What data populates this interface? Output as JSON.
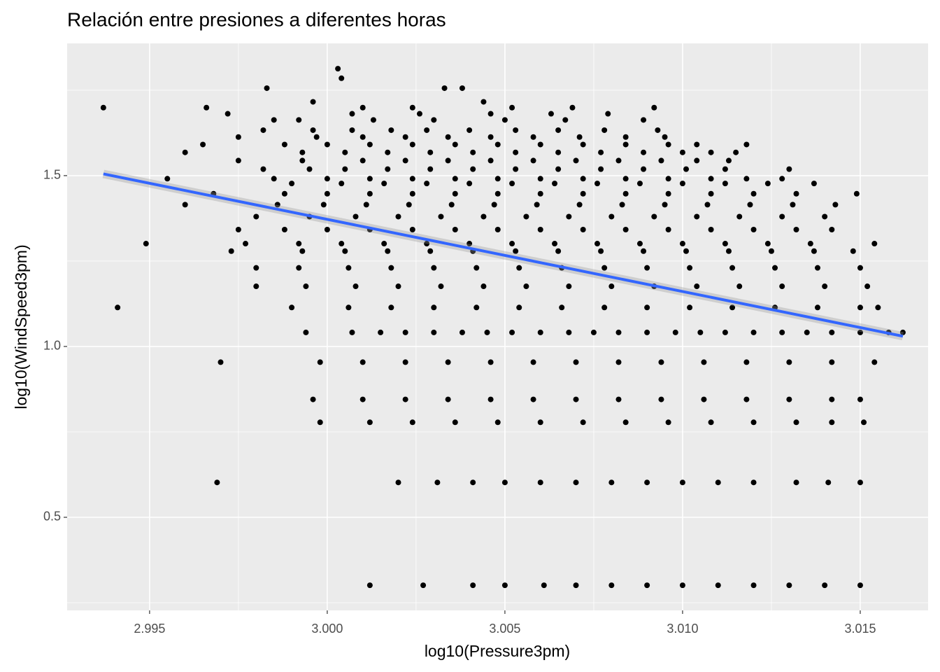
{
  "chart_data": {
    "type": "scatter",
    "title": "Relación entre presiones a diferentes horas",
    "x_label": "log10(Pressure3pm)",
    "y_label": "log10(WindSpeed3pm)",
    "xlim": [
      2.99268,
      3.01691
    ],
    "ylim": [
      0.2275,
      1.887
    ],
    "xticks": [
      2.995,
      {
        "value": 3,
        "label": "3.000"
      },
      3.005,
      {
        "value": 3.01,
        "label": "3.010"
      },
      3.015
    ],
    "yticks": [
      0.5,
      {
        "value": 1,
        "label": "1.0"
      },
      1.5
    ],
    "grid": true,
    "fit": {
      "color": "#3366ff",
      "x": [
        2.9937,
        3.0162
      ],
      "values": [
        1.505,
        1.03
      ]
    },
    "series": [
      {
        "color": "#000000",
        "x": [
          3.0003
        ],
        "values": [
          1.813
        ]
      },
      {
        "color": "#000000",
        "x": [
          3.0004
        ],
        "values": [
          1.785
        ]
      },
      {
        "color": "#000000",
        "x": [
          2.9983,
          3.0033,
          3.0038
        ],
        "values": [
          1.756,
          1.756,
          1.756
        ]
      },
      {
        "color": "#000000",
        "x": [
          2.9996,
          3.0044
        ],
        "values": [
          1.716,
          1.716
        ]
      },
      {
        "color": "#000000",
        "x": [
          2.9937,
          2.9966,
          3.001,
          3.0024,
          3.0052,
          3.0069,
          3.0092
        ],
        "values": [
          1.699,
          1.699,
          1.699,
          1.699,
          1.699,
          1.699,
          1.699
        ]
      },
      {
        "color": "#000000",
        "x": [
          2.9972,
          3.0007,
          3.0026,
          3.0046,
          3.0063,
          3.0079
        ],
        "values": [
          1.681,
          1.681,
          1.681,
          1.681,
          1.681,
          1.681
        ]
      },
      {
        "color": "#000000",
        "x": [
          2.9985,
          2.9992,
          3.0013,
          3.003,
          3.005,
          3.0067,
          3.0089
        ],
        "values": [
          1.663,
          1.663,
          1.663,
          1.663,
          1.663,
          1.663,
          1.663
        ]
      },
      {
        "color": "#000000",
        "x": [
          2.9982,
          2.9996,
          3.0007,
          3.0018,
          3.0028,
          3.004,
          3.0053,
          3.0065,
          3.0078,
          3.0093
        ],
        "values": [
          1.633,
          1.633,
          1.633,
          1.633,
          1.633,
          1.633,
          1.633,
          1.633,
          1.633,
          1.633
        ]
      },
      {
        "color": "#000000",
        "x": [
          2.9975,
          2.9997,
          3.001,
          3.0022,
          3.0034,
          3.0046,
          3.0058,
          3.0071,
          3.0084,
          3.0095
        ],
        "values": [
          1.613,
          1.613,
          1.613,
          1.613,
          1.613,
          1.613,
          1.613,
          1.613,
          1.613,
          1.613
        ]
      },
      {
        "color": "#000000",
        "x": [
          2.9965,
          2.9988,
          3.0,
          3.0012,
          3.0024,
          3.0036,
          3.0048,
          3.006,
          3.0072,
          3.0084,
          3.0096,
          3.0104,
          3.0118
        ],
        "values": [
          1.591,
          1.591,
          1.591,
          1.591,
          1.591,
          1.591,
          1.591,
          1.591,
          1.591,
          1.591,
          1.591,
          1.591,
          1.591
        ]
      },
      {
        "color": "#000000",
        "x": [
          2.996,
          2.9993,
          3.0005,
          3.0017,
          3.0029,
          3.0041,
          3.0053,
          3.0065,
          3.0077,
          3.0089,
          3.01,
          3.0108,
          3.0115
        ],
        "values": [
          1.568,
          1.568,
          1.568,
          1.568,
          1.568,
          1.568,
          1.568,
          1.568,
          1.568,
          1.568,
          1.568,
          1.568,
          1.568
        ]
      },
      {
        "color": "#000000",
        "x": [
          2.9975,
          2.9993,
          3.001,
          3.0022,
          3.0034,
          3.0046,
          3.0058,
          3.007,
          3.0082,
          3.0094,
          3.0104,
          3.0113
        ],
        "values": [
          1.544,
          1.544,
          1.544,
          1.544,
          1.544,
          1.544,
          1.544,
          1.544,
          1.544,
          1.544,
          1.544,
          1.544
        ]
      },
      {
        "color": "#000000",
        "x": [
          2.9982,
          2.9995,
          3.0005,
          3.0017,
          3.0029,
          3.0041,
          3.0053,
          3.0065,
          3.0077,
          3.0089,
          3.0101,
          3.0112,
          3.013
        ],
        "values": [
          1.519,
          1.519,
          1.519,
          1.519,
          1.519,
          1.519,
          1.519,
          1.519,
          1.519,
          1.519,
          1.519,
          1.519,
          1.519
        ]
      },
      {
        "color": "#000000",
        "x": [
          2.9955,
          2.9985,
          3.0,
          3.0012,
          3.0024,
          3.0036,
          3.0048,
          3.006,
          3.0072,
          3.0084,
          3.0096,
          3.0108,
          3.0118,
          3.0128
        ],
        "values": [
          1.491,
          1.491,
          1.491,
          1.491,
          1.491,
          1.491,
          1.491,
          1.491,
          1.491,
          1.491,
          1.491,
          1.491,
          1.491,
          1.491
        ]
      },
      {
        "color": "#000000",
        "x": [
          2.999,
          3.0004,
          3.0016,
          3.0028,
          3.004,
          3.0052,
          3.0064,
          3.0076,
          3.0088,
          3.01,
          3.0112,
          3.0124,
          3.0137
        ],
        "values": [
          1.477,
          1.477,
          1.477,
          1.477,
          1.477,
          1.477,
          1.477,
          1.477,
          1.477,
          1.477,
          1.477,
          1.477,
          1.477
        ]
      },
      {
        "color": "#000000",
        "x": [
          2.9968,
          2.9988,
          3.0,
          3.0012,
          3.0024,
          3.0036,
          3.0048,
          3.006,
          3.0072,
          3.0084,
          3.0096,
          3.0108,
          3.012,
          3.0132,
          3.0149
        ],
        "values": [
          1.447,
          1.447,
          1.447,
          1.447,
          1.447,
          1.447,
          1.447,
          1.447,
          1.447,
          1.447,
          1.447,
          1.447,
          1.447,
          1.447,
          1.447
        ]
      },
      {
        "color": "#000000",
        "x": [
          2.996,
          2.9986,
          2.9999,
          3.0011,
          3.0023,
          3.0035,
          3.0047,
          3.0059,
          3.0071,
          3.0083,
          3.0095,
          3.0107,
          3.0119,
          3.0131,
          3.0143
        ],
        "values": [
          1.415,
          1.415,
          1.415,
          1.415,
          1.415,
          1.415,
          1.415,
          1.415,
          1.415,
          1.415,
          1.415,
          1.415,
          1.415,
          1.415,
          1.415
        ]
      },
      {
        "color": "#000000",
        "x": [
          2.998,
          2.9995,
          3.0008,
          3.002,
          3.0032,
          3.0044,
          3.0056,
          3.0068,
          3.008,
          3.0092,
          3.0104,
          3.0116,
          3.0128,
          3.014
        ],
        "values": [
          1.38,
          1.38,
          1.38,
          1.38,
          1.38,
          1.38,
          1.38,
          1.38,
          1.38,
          1.38,
          1.38,
          1.38,
          1.38,
          1.38
        ]
      },
      {
        "color": "#000000",
        "x": [
          2.9975,
          2.9988,
          3.0,
          3.0012,
          3.0024,
          3.0036,
          3.0048,
          3.006,
          3.0072,
          3.0084,
          3.0096,
          3.0108,
          3.012,
          3.0132,
          3.0142
        ],
        "values": [
          1.342,
          1.342,
          1.342,
          1.342,
          1.342,
          1.342,
          1.342,
          1.342,
          1.342,
          1.342,
          1.342,
          1.342,
          1.342,
          1.342,
          1.342
        ]
      },
      {
        "color": "#000000",
        "x": [
          2.9949,
          2.9977,
          2.9992,
          3.0004,
          3.0016,
          3.0028,
          3.004,
          3.0052,
          3.0064,
          3.0076,
          3.0088,
          3.01,
          3.0112,
          3.0124,
          3.0136,
          3.0154
        ],
        "values": [
          1.301,
          1.301,
          1.301,
          1.301,
          1.301,
          1.301,
          1.301,
          1.301,
          1.301,
          1.301,
          1.301,
          1.301,
          1.301,
          1.301,
          1.301,
          1.301
        ]
      },
      {
        "color": "#000000",
        "x": [
          2.9973,
          2.9993,
          3.0005,
          3.0017,
          3.0029,
          3.0041,
          3.0053,
          3.0065,
          3.0077,
          3.0089,
          3.0101,
          3.0113,
          3.0125,
          3.0137,
          3.0148
        ],
        "values": [
          1.279,
          1.279,
          1.279,
          1.279,
          1.279,
          1.279,
          1.279,
          1.279,
          1.279,
          1.279,
          1.279,
          1.279,
          1.279,
          1.279,
          1.279
        ]
      },
      {
        "color": "#000000",
        "x": [
          2.998,
          2.9992,
          3.0006,
          3.0018,
          3.003,
          3.0042,
          3.0054,
          3.0066,
          3.0078,
          3.009,
          3.0102,
          3.0114,
          3.0126,
          3.0138,
          3.015
        ],
        "values": [
          1.23,
          1.23,
          1.23,
          1.23,
          1.23,
          1.23,
          1.23,
          1.23,
          1.23,
          1.23,
          1.23,
          1.23,
          1.23,
          1.23,
          1.23
        ]
      },
      {
        "color": "#000000",
        "x": [
          2.998,
          2.9994,
          3.0008,
          3.002,
          3.0032,
          3.0044,
          3.0056,
          3.0068,
          3.008,
          3.0092,
          3.0104,
          3.0116,
          3.0128,
          3.014,
          3.0152
        ],
        "values": [
          1.176,
          1.176,
          1.176,
          1.176,
          1.176,
          1.176,
          1.176,
          1.176,
          1.176,
          1.176,
          1.176,
          1.176,
          1.176,
          1.176,
          1.176
        ]
      },
      {
        "color": "#000000",
        "x": [
          2.9941,
          2.999,
          3.0006,
          3.0018,
          3.003,
          3.0042,
          3.0054,
          3.0066,
          3.0078,
          3.009,
          3.0102,
          3.0114,
          3.0126,
          3.0138,
          3.015,
          3.0155
        ],
        "values": [
          1.114,
          1.114,
          1.114,
          1.114,
          1.114,
          1.114,
          1.114,
          1.114,
          1.114,
          1.114,
          1.114,
          1.114,
          1.114,
          1.114,
          1.114,
          1.114
        ]
      },
      {
        "color": "#000000",
        "x": [
          2.9994,
          3.0007,
          3.0015,
          3.0022,
          3.003,
          3.0038,
          3.0045,
          3.0052,
          3.006,
          3.0068,
          3.0075,
          3.0082,
          3.009,
          3.0098,
          3.0105,
          3.0112,
          3.012,
          3.0128,
          3.0135,
          3.0142,
          3.015,
          3.0158,
          3.0162
        ],
        "values": [
          1.041,
          1.041,
          1.041,
          1.041,
          1.041,
          1.041,
          1.041,
          1.041,
          1.041,
          1.041,
          1.041,
          1.041,
          1.041,
          1.041,
          1.041,
          1.041,
          1.041,
          1.041,
          1.041,
          1.041,
          1.041,
          1.041,
          1.041
        ]
      },
      {
        "color": "#000000",
        "x": [
          2.997,
          2.9998,
          3.001,
          3.0022,
          3.0034,
          3.0046,
          3.0058,
          3.007,
          3.0082,
          3.0094,
          3.0106,
          3.0118,
          3.013,
          3.0142,
          3.0154
        ],
        "values": [
          0.954,
          0.954,
          0.954,
          0.954,
          0.954,
          0.954,
          0.954,
          0.954,
          0.954,
          0.954,
          0.954,
          0.954,
          0.954,
          0.954,
          0.954
        ]
      },
      {
        "color": "#000000",
        "x": [
          2.9996,
          3.001,
          3.0022,
          3.0034,
          3.0046,
          3.0058,
          3.007,
          3.0082,
          3.0094,
          3.0106,
          3.0118,
          3.013,
          3.0142,
          3.015
        ],
        "values": [
          0.845,
          0.845,
          0.845,
          0.845,
          0.845,
          0.845,
          0.845,
          0.845,
          0.845,
          0.845,
          0.845,
          0.845,
          0.845,
          0.845
        ]
      },
      {
        "color": "#000000",
        "x": [
          2.9998,
          3.0012,
          3.0024,
          3.0036,
          3.0048,
          3.006,
          3.0072,
          3.0084,
          3.0096,
          3.0108,
          3.012,
          3.0132,
          3.0142,
          3.0151
        ],
        "values": [
          0.778,
          0.778,
          0.778,
          0.778,
          0.778,
          0.778,
          0.778,
          0.778,
          0.778,
          0.778,
          0.778,
          0.778,
          0.778,
          0.778
        ]
      },
      {
        "color": "#000000",
        "x": [
          2.9969,
          3.002,
          3.0031,
          3.0041,
          3.005,
          3.006,
          3.007,
          3.008,
          3.009,
          3.01,
          3.011,
          3.012,
          3.0132,
          3.0141,
          3.015
        ],
        "values": [
          0.602,
          0.602,
          0.602,
          0.602,
          0.602,
          0.602,
          0.602,
          0.602,
          0.602,
          0.602,
          0.602,
          0.602,
          0.602,
          0.602,
          0.602
        ]
      },
      {
        "color": "#000000",
        "x": [
          3.0012,
          3.0027,
          3.0041,
          3.005,
          3.0061,
          3.007,
          3.008,
          3.009,
          3.01,
          3.011,
          3.012,
          3.013,
          3.014,
          3.015
        ],
        "values": [
          0.301,
          0.301,
          0.301,
          0.301,
          0.301,
          0.301,
          0.301,
          0.301,
          0.301,
          0.301,
          0.301,
          0.301,
          0.301,
          0.301
        ]
      }
    ]
  }
}
